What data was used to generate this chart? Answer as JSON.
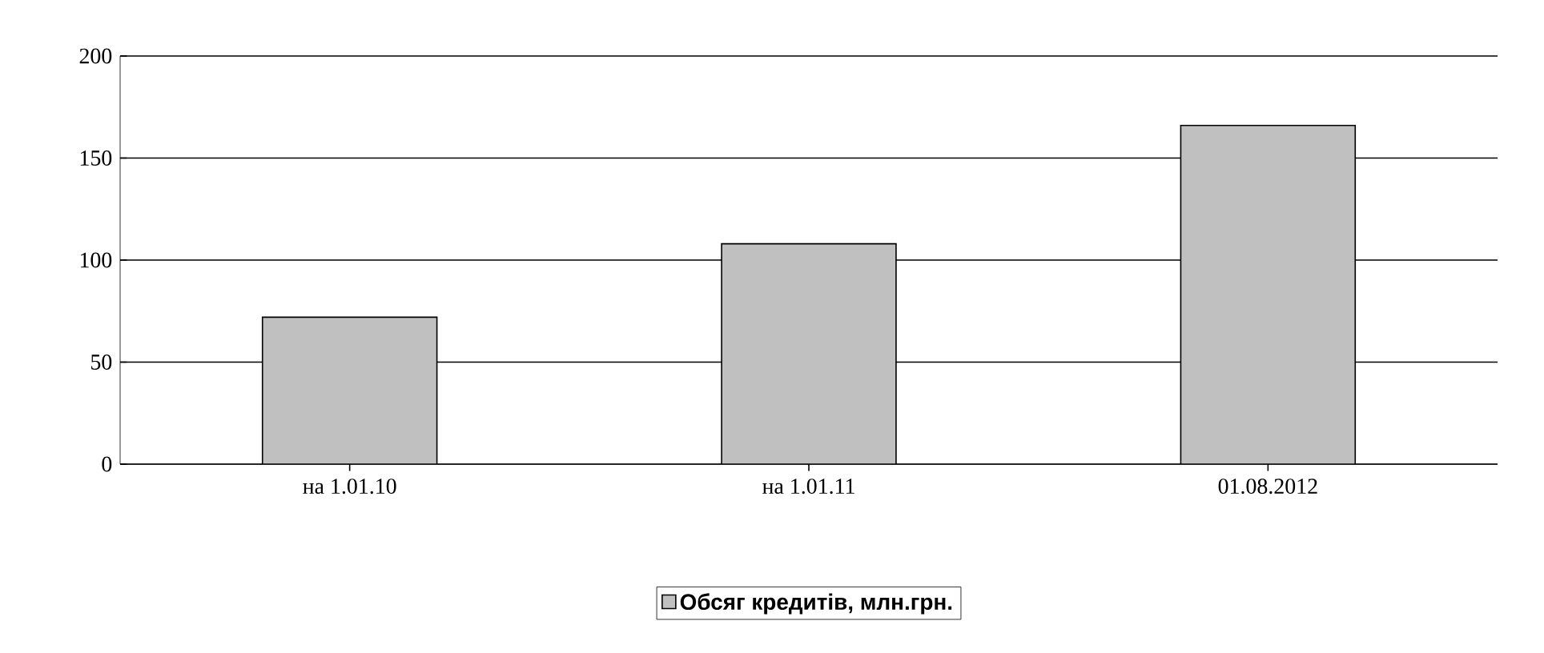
{
  "chart_data": {
    "type": "bar",
    "categories": [
      "на 1.01.10",
      "на 1.01.11",
      "01.08.2012"
    ],
    "series": [
      {
        "name": "Обсяг кредитів, млн.грн.",
        "color": "#c0c0c0",
        "values": [
          72,
          108,
          166
        ]
      }
    ],
    "ylim": [
      0,
      200
    ],
    "yticks": [
      0,
      50,
      100,
      150,
      200
    ],
    "grid": "y",
    "legend": "bottom"
  }
}
